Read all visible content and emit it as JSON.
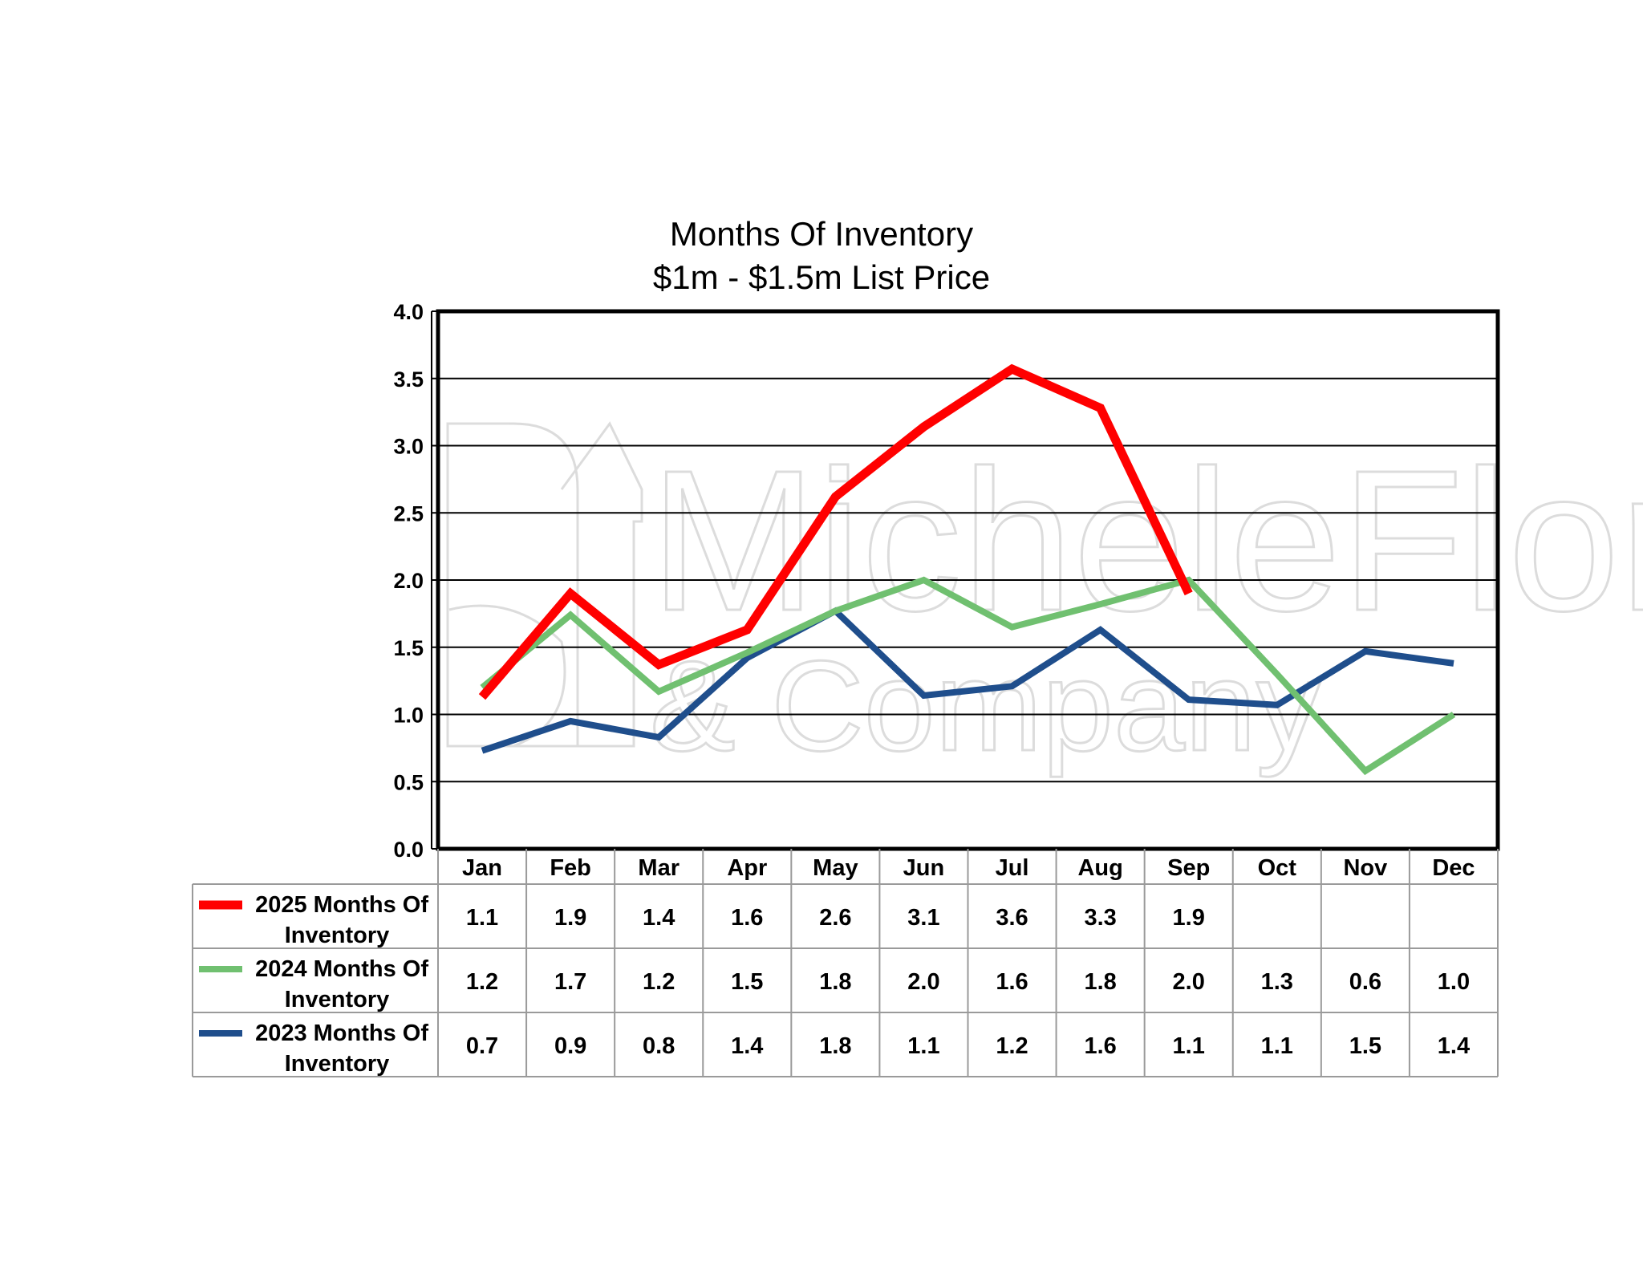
{
  "colors": {
    "series_2025": "#ff0000",
    "series_2024": "#70c070",
    "series_2023": "#1f4e8c",
    "grid": "#000000",
    "table_border": "#9a9a9a",
    "watermark": "#d9d9d9"
  },
  "watermark": {
    "line1": "MicheleFlory",
    "line2": "& Company",
    "icon": "house-logo-icon"
  },
  "chart_data": {
    "type": "line",
    "title": "Months Of Inventory",
    "subtitle": "$1m - $1.5m List Price",
    "xlabel": "",
    "ylabel": "",
    "ylim": [
      0,
      4
    ],
    "yticks": [
      "0.0",
      "0.5",
      "1.0",
      "1.5",
      "2.0",
      "2.5",
      "3.0",
      "3.5",
      "4.0"
    ],
    "grid": true,
    "legend_placement": "data-table-left",
    "categories": [
      "Jan",
      "Feb",
      "Mar",
      "Apr",
      "May",
      "Jun",
      "Jul",
      "Aug",
      "Sep",
      "Oct",
      "Nov",
      "Dec"
    ],
    "series": [
      {
        "name_line1": "2025 Months Of",
        "name_line2": "Inventory",
        "color": "#ff0000",
        "values": [
          1.13,
          1.9,
          1.37,
          1.63,
          2.62,
          3.14,
          3.57,
          3.28,
          1.9,
          null,
          null,
          null
        ],
        "labels": [
          "1.1",
          "1.9",
          "1.4",
          "1.6",
          "2.6",
          "3.1",
          "3.6",
          "3.3",
          "1.9",
          "",
          "",
          ""
        ]
      },
      {
        "name_line1": "2024 Months Of",
        "name_line2": "Inventory",
        "color": "#70c070",
        "values": [
          1.2,
          1.74,
          1.17,
          1.46,
          1.77,
          2.0,
          1.65,
          1.82,
          2.0,
          1.3,
          0.58,
          1.0
        ],
        "labels": [
          "1.2",
          "1.7",
          "1.2",
          "1.5",
          "1.8",
          "2.0",
          "1.6",
          "1.8",
          "2.0",
          "1.3",
          "0.6",
          "1.0"
        ]
      },
      {
        "name_line1": "2023 Months Of",
        "name_line2": "Inventory",
        "color": "#1f4e8c",
        "values": [
          0.73,
          0.95,
          0.83,
          1.42,
          1.77,
          1.14,
          1.21,
          1.63,
          1.11,
          1.07,
          1.47,
          1.38
        ],
        "labels": [
          "0.7",
          "0.9",
          "0.8",
          "1.4",
          "1.8",
          "1.1",
          "1.2",
          "1.6",
          "1.1",
          "1.1",
          "1.5",
          "1.4"
        ]
      }
    ]
  }
}
